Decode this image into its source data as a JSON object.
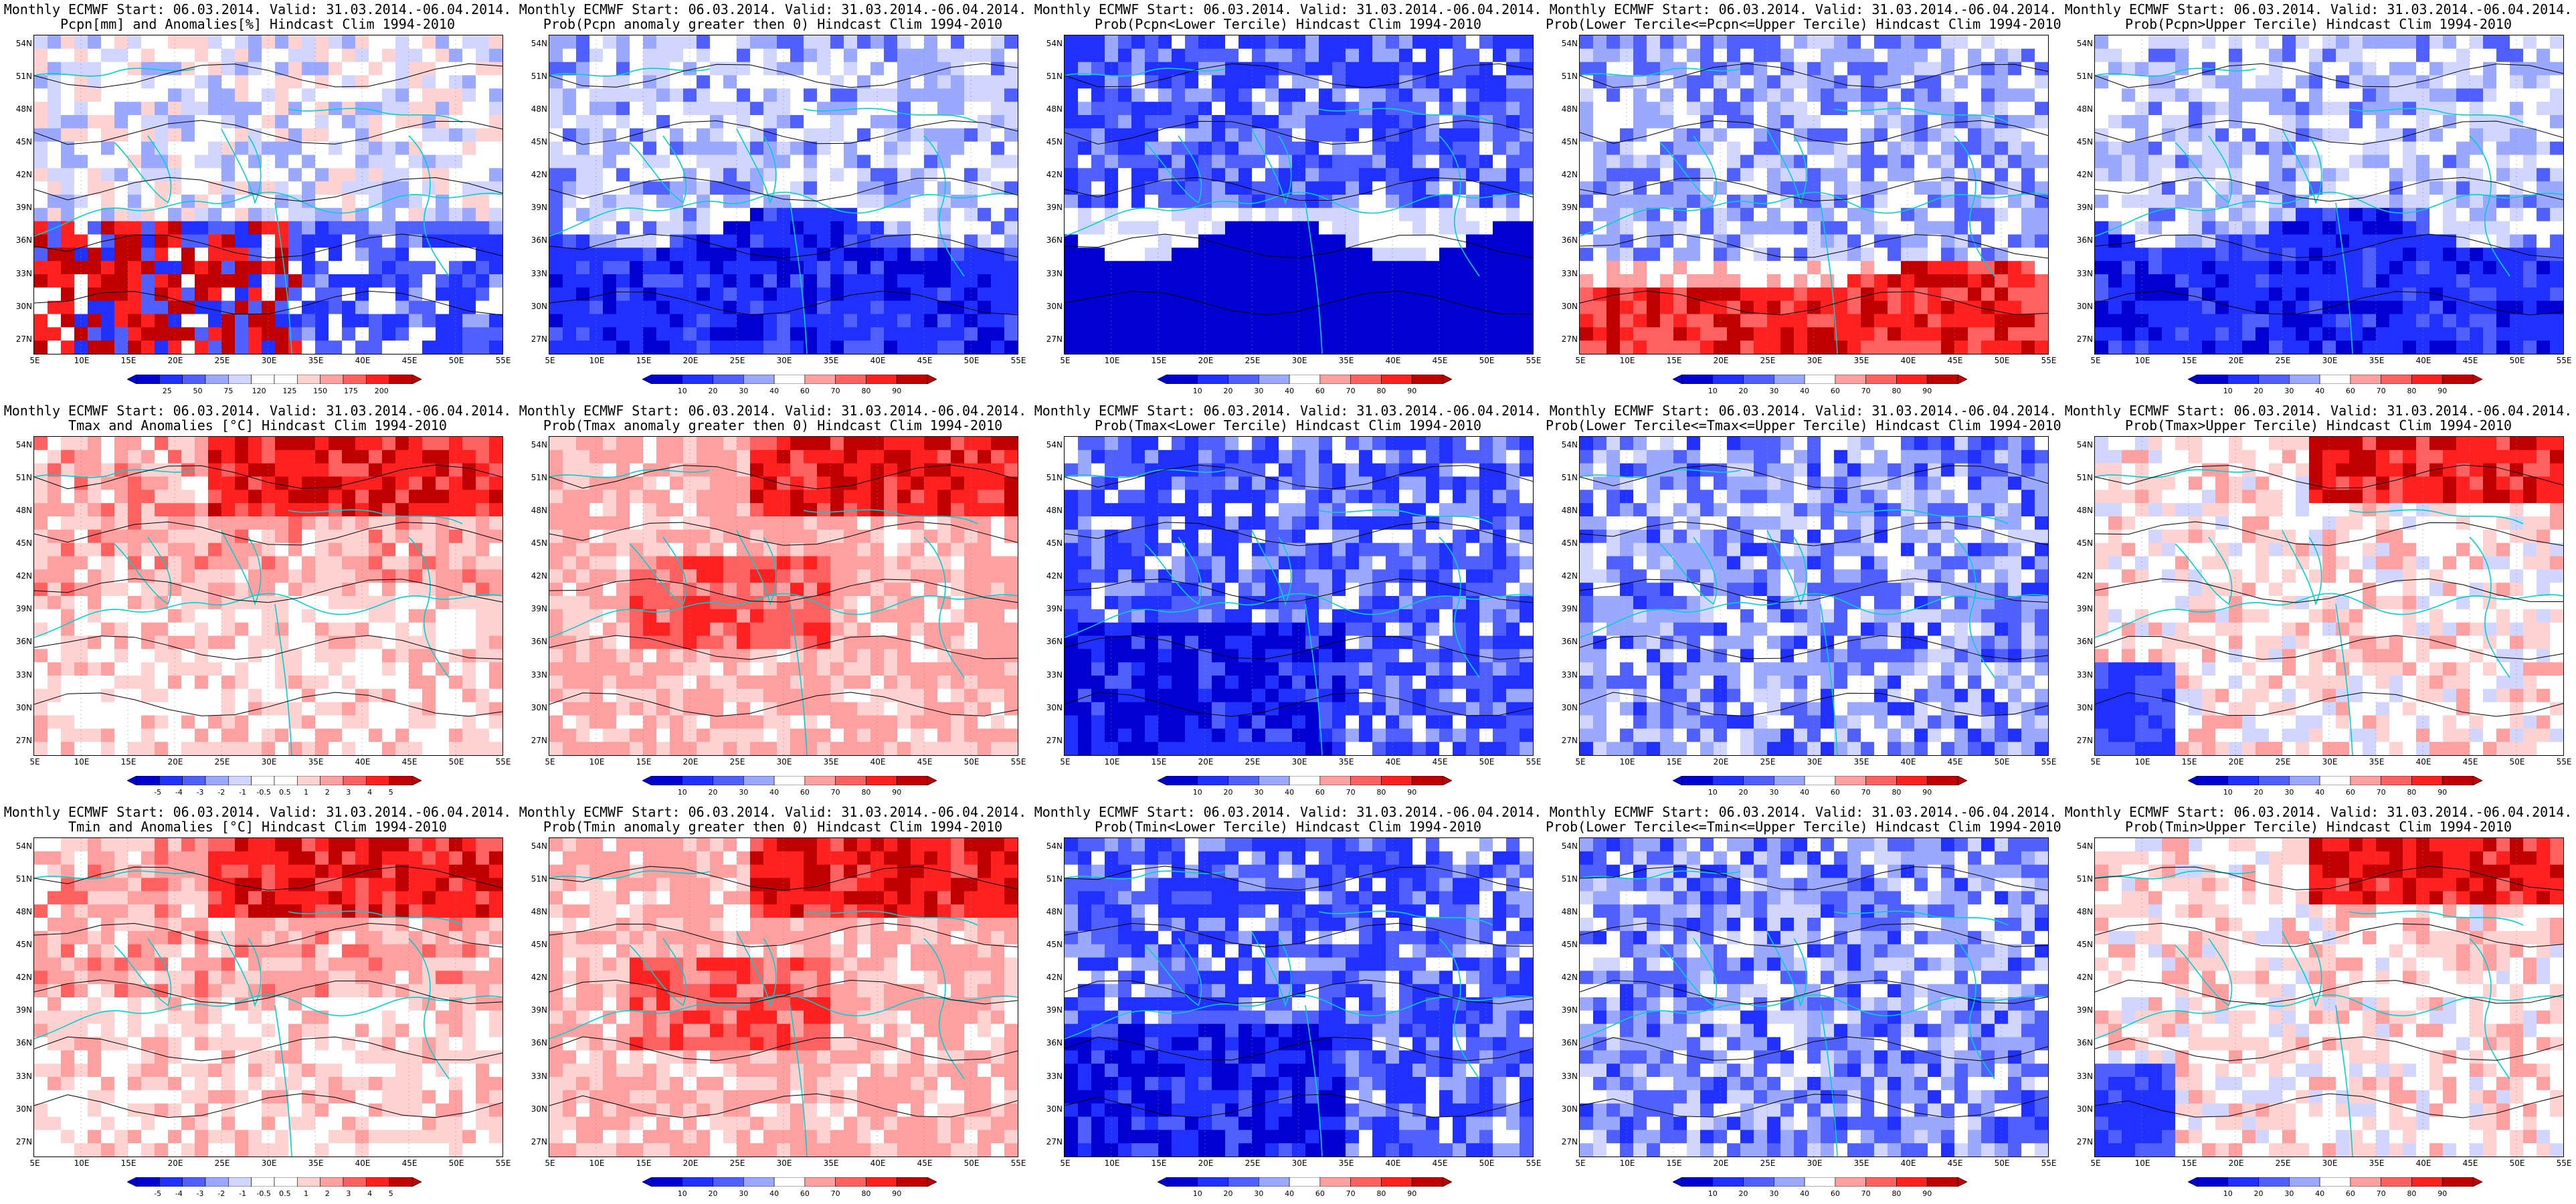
{
  "common": {
    "header": "Monthly ECMWF Start: 06.03.2014. Valid: 31.03.2014.-06.04.2014.",
    "lat_labels": [
      "54N",
      "51N",
      "48N",
      "45N",
      "42N",
      "39N",
      "36N",
      "33N",
      "30N",
      "27N"
    ],
    "lon_labels": [
      "5E",
      "10E",
      "15E",
      "20E",
      "25E",
      "30E",
      "35E",
      "40E",
      "45E",
      "50E",
      "55E"
    ]
  },
  "colors": {
    "red_dark": "#c00000",
    "red": "#ff2020",
    "red_mid": "#ff6060",
    "red_light": "#ffa0a0",
    "red_pale": "#ffd2d2",
    "blue_dark": "#0000d0",
    "blue": "#2030ff",
    "blue_mid": "#5060ff",
    "blue_light": "#9aa8ff",
    "blue_pale": "#d0d6ff",
    "white": "#ffffff",
    "coast": "#00d0d0",
    "contour": "#000000"
  },
  "panels": [
    {
      "title": "Pcpn[mm] and Anomalies[%] Hindcast Clim 1994-2010",
      "scheme": "pcpn_anom",
      "colorbar": [
        "25",
        "50",
        "75",
        "120",
        "125",
        "150",
        "175",
        "200"
      ]
    },
    {
      "title": "Prob(Pcpn anomaly greater then 0) Hindcast Clim 1994-2010",
      "scheme": "prob_low",
      "colorbar": [
        "10",
        "20",
        "30",
        "40",
        "60",
        "70",
        "80",
        "90"
      ]
    },
    {
      "title": "Prob(Pcpn<Lower Tercile) Hindcast Clim 1994-2010",
      "scheme": "prob_lower_pcpn",
      "colorbar": [
        "10",
        "20",
        "30",
        "40",
        "60",
        "70",
        "80",
        "90"
      ]
    },
    {
      "title": "Prob(Lower Tercile<=Pcpn<=Upper Tercile) Hindcast Clim 1994-2010",
      "scheme": "prob_mid_pcpn",
      "colorbar": [
        "10",
        "20",
        "30",
        "40",
        "60",
        "70",
        "80",
        "90"
      ]
    },
    {
      "title": "Prob(Pcpn>Upper Tercile) Hindcast Clim 1994-2010",
      "scheme": "prob_low",
      "colorbar": [
        "10",
        "20",
        "30",
        "40",
        "60",
        "70",
        "80",
        "90"
      ]
    },
    {
      "title": "Tmax and Anomalies [°C] Hindcast Clim 1994-2010",
      "scheme": "temp_warm",
      "colorbar": [
        "-5",
        "-4",
        "-3",
        "-2",
        "-1",
        "-0.5",
        "0.5",
        "1",
        "2",
        "3",
        "4",
        "5"
      ]
    },
    {
      "title": "Prob(Tmax anomaly greater then 0) Hindcast Clim 1994-2010",
      "scheme": "prob_warm",
      "colorbar": [
        "10",
        "20",
        "30",
        "40",
        "60",
        "70",
        "80",
        "90"
      ]
    },
    {
      "title": "Prob(Tmax<Lower Tercile) Hindcast Clim 1994-2010",
      "scheme": "prob_cold",
      "colorbar": [
        "10",
        "20",
        "30",
        "40",
        "60",
        "70",
        "80",
        "90"
      ]
    },
    {
      "title": "Prob(Lower Tercile<=Tmax<=Upper Tercile) Hindcast Clim 1994-2010",
      "scheme": "prob_mid",
      "colorbar": [
        "10",
        "20",
        "30",
        "40",
        "60",
        "70",
        "80",
        "90"
      ]
    },
    {
      "title": "Prob(Tmax>Upper Tercile) Hindcast Clim 1994-2010",
      "scheme": "prob_upper",
      "colorbar": [
        "10",
        "20",
        "30",
        "40",
        "60",
        "70",
        "80",
        "90"
      ]
    },
    {
      "title": "Tmin and Anomalies [°C] Hindcast Clim 1994-2010",
      "scheme": "temp_warm",
      "colorbar": [
        "-5",
        "-4",
        "-3",
        "-2",
        "-1",
        "-0.5",
        "0.5",
        "1",
        "2",
        "3",
        "4",
        "5"
      ]
    },
    {
      "title": "Prob(Tmin anomaly greater then 0) Hindcast Clim 1994-2010",
      "scheme": "prob_warm",
      "colorbar": [
        "10",
        "20",
        "30",
        "40",
        "60",
        "70",
        "80",
        "90"
      ]
    },
    {
      "title": "Prob(Tmin<Lower Tercile) Hindcast Clim 1994-2010",
      "scheme": "prob_cold",
      "colorbar": [
        "10",
        "20",
        "30",
        "40",
        "60",
        "70",
        "80",
        "90"
      ]
    },
    {
      "title": "Prob(Lower Tercile<=Tmin<=Upper Tercile) Hindcast Clim 1994-2010",
      "scheme": "prob_mid",
      "colorbar": [
        "10",
        "20",
        "30",
        "40",
        "60",
        "70",
        "80",
        "90"
      ]
    },
    {
      "title": "Prob(Tmin>Upper Tercile) Hindcast Clim 1994-2010",
      "scheme": "prob_upper",
      "colorbar": [
        "10",
        "20",
        "30",
        "40",
        "60",
        "70",
        "80",
        "90"
      ]
    }
  ]
}
